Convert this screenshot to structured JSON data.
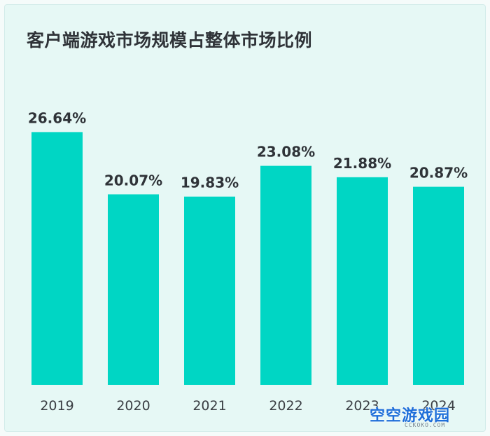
{
  "chart_data": {
    "type": "bar",
    "title": "客户端游戏市场规模占整体市场比例",
    "categories": [
      "2019",
      "2020",
      "2021",
      "2022",
      "2023",
      "2024"
    ],
    "values": [
      26.64,
      20.07,
      19.83,
      23.08,
      21.88,
      20.87
    ],
    "value_labels": [
      "26.64%",
      "20.07%",
      "19.83%",
      "23.08%",
      "21.88%",
      "20.87%"
    ],
    "ylim": [
      0,
      28.0
    ],
    "grid": false,
    "legend": "none",
    "bar_color": "#00d6c4"
  },
  "watermark": {
    "text": "空空游戏园",
    "sub": "CCKOKO.COM"
  },
  "colors": {
    "background": "#e6f8f5",
    "text": "#2f3338"
  }
}
